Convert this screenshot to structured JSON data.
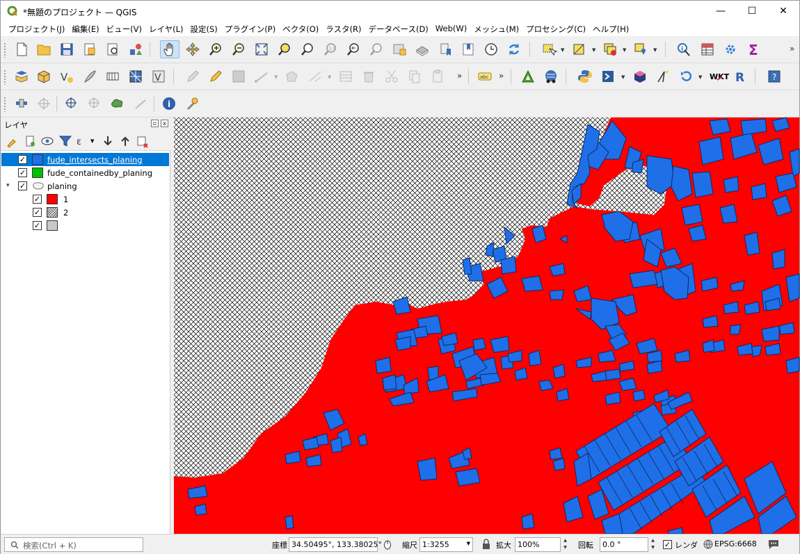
{
  "window": {
    "title": "*無題のプロジェクト — QGIS",
    "minimize": "—",
    "maximize": "☐",
    "close": "✕"
  },
  "menu": [
    "プロジェクト(J)",
    "編集(E)",
    "ビュー(V)",
    "レイヤ(L)",
    "設定(S)",
    "プラグイン(P)",
    "ベクタ(O)",
    "ラスタ(R)",
    "データベース(D)",
    "Web(W)",
    "メッシュ(M)",
    "プロセシング(C)",
    "ヘルプ(H)"
  ],
  "toolbar": {
    "overflow": "»",
    "wkt_label": "WKT",
    "r_label": "R",
    "abc_label": "abc"
  },
  "layers_panel": {
    "title": "レイヤ",
    "layers": [
      {
        "name": "fude_intersects_planing",
        "checked": "✓",
        "color": "#1f6fe8"
      },
      {
        "name": "fude_containedby_planing",
        "checked": "✓",
        "color": "#00c000"
      },
      {
        "name": "planing",
        "checked": "✓",
        "expanded": "▾"
      }
    ],
    "classes": [
      {
        "label": "1",
        "checked": "✓",
        "color": "#ff0000"
      },
      {
        "label": "2",
        "checked": "✓",
        "pattern": "crosshatch"
      },
      {
        "label": "",
        "checked": "✓",
        "color": "#c8c8c8"
      }
    ]
  },
  "status": {
    "search_placeholder": "検索(Ctrl + K)",
    "coord_label": "座標",
    "coord_value": "34.50495°, 133.38025°",
    "scale_label": "縮尺",
    "scale_value": "1:3255",
    "magnifier_label": "拡大",
    "magnifier_value": "100%",
    "rotation_label": "回転",
    "rotation_value": "0.0 °",
    "render_label": "レンダ",
    "render_checked": "✓",
    "crs": "EPSG:6668"
  },
  "map_colors": {
    "planning_red": "#ff0000",
    "parcel_blue": "#1f6fe8",
    "outline": "#0b2a66"
  }
}
